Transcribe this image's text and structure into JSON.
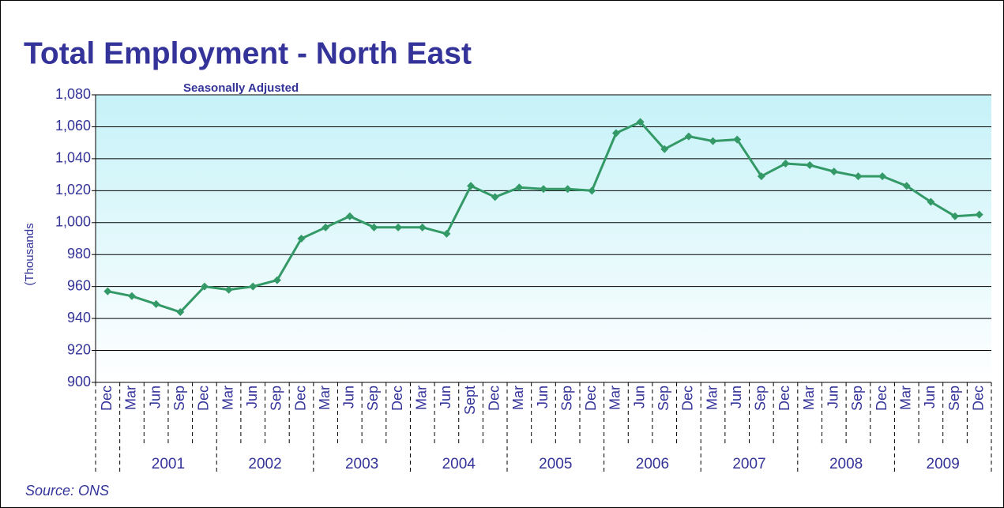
{
  "chart_data": {
    "type": "line",
    "title": "Total Employment - North East",
    "subtitle": "Seasonally Adjusted",
    "y_label": "(Thousands",
    "source": "Source: ONS",
    "categories": [
      "Dec",
      "Mar",
      "Jun",
      "Sep",
      "Dec",
      "Mar",
      "Jun",
      "Sep",
      "Dec",
      "Mar",
      "Jun",
      "Sep",
      "Dec",
      "Mar",
      "Jun",
      "Sept",
      "Dec",
      "Mar",
      "Jun",
      "Sep",
      "Dec",
      "Mar",
      "Jun",
      "Sep",
      "Dec",
      "Mar",
      "Jun",
      "Sep",
      "Dec",
      "Mar",
      "Jun",
      "Sep",
      "Dec",
      "Mar",
      "Jun",
      "Sep",
      "Dec"
    ],
    "years": [
      "2001",
      "2002",
      "2003",
      "2004",
      "2005",
      "2006",
      "2007",
      "2008",
      "2009"
    ],
    "series": [
      {
        "color": "#339966",
        "values": [
          957,
          954,
          949,
          944,
          960,
          958,
          960,
          964,
          990,
          997,
          1004,
          997,
          997,
          997,
          993,
          1023,
          1016,
          1022,
          1021,
          1021,
          1020,
          1056,
          1063,
          1046,
          1054,
          1051,
          1052,
          1029,
          1037,
          1036,
          1032,
          1029,
          1029,
          1023,
          1013,
          1004,
          1005
        ]
      }
    ],
    "ylim": [
      900,
      1080
    ],
    "yticks": [
      900,
      920,
      940,
      960,
      980,
      {
        "value": 1000,
        "label": "1,000"
      },
      {
        "value": 1020,
        "label": "1,020"
      },
      {
        "value": 1040,
        "label": "1,040"
      },
      {
        "value": 1060,
        "label": "1,060"
      },
      {
        "value": 1080,
        "label": "1,080"
      }
    ],
    "grid": true
  }
}
